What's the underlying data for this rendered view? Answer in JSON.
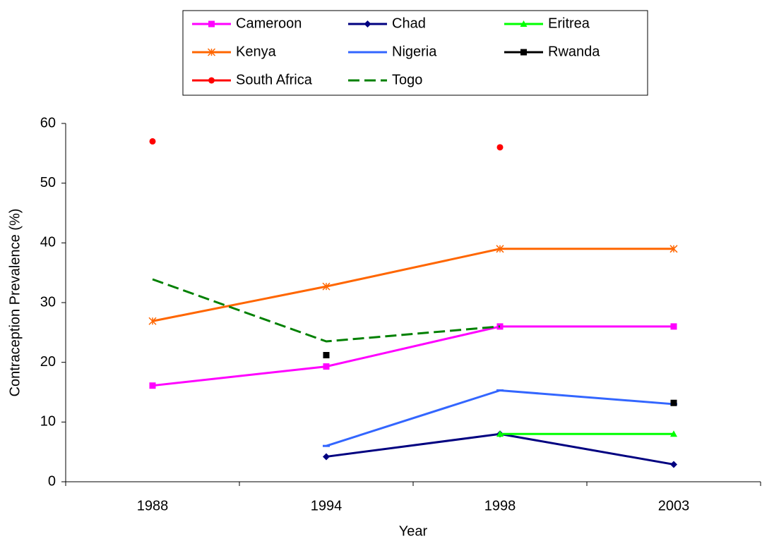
{
  "chart_data": {
    "type": "line",
    "xlabel": "Year",
    "ylabel": "Contraception Prevalence (%)",
    "categories": [
      "1988",
      "1994",
      "1998",
      "2003"
    ],
    "ylim": [
      0,
      60
    ],
    "yticks": [
      0,
      10,
      20,
      30,
      40,
      50,
      60
    ],
    "grid": false,
    "legend": "top",
    "series": [
      {
        "name": "Cameroon",
        "color": "#ff00ff",
        "marker": "square",
        "line_style": "solid",
        "values": [
          16.1,
          19.3,
          26,
          26
        ]
      },
      {
        "name": "Chad",
        "color": "#000080",
        "marker": "diamond",
        "line_style": "solid",
        "values": [
          null,
          4.2,
          8,
          2.9
        ]
      },
      {
        "name": "Eritrea",
        "color": "#00ff00",
        "marker": "triangle",
        "line_style": "solid",
        "values": [
          null,
          null,
          8,
          8
        ]
      },
      {
        "name": "Kenya",
        "color": "#ff6600",
        "marker": "asterisk",
        "line_style": "solid",
        "values": [
          26.9,
          32.7,
          39,
          39
        ]
      },
      {
        "name": "Nigeria",
        "color": "#3366ff",
        "marker": "dash",
        "line_style": "solid",
        "values": [
          null,
          6,
          15.3,
          13
        ]
      },
      {
        "name": "Rwanda",
        "color": "#000000",
        "marker": "square",
        "line_style": "none",
        "values": [
          null,
          21.2,
          null,
          13.2
        ]
      },
      {
        "name": "South Africa",
        "color": "#ff0000",
        "marker": "circle",
        "line_style": "none",
        "values": [
          57,
          null,
          56,
          null
        ]
      },
      {
        "name": "Togo",
        "color": "#008000",
        "marker": "none",
        "line_style": "dashed",
        "values": [
          33.9,
          23.5,
          26,
          null
        ]
      }
    ]
  }
}
